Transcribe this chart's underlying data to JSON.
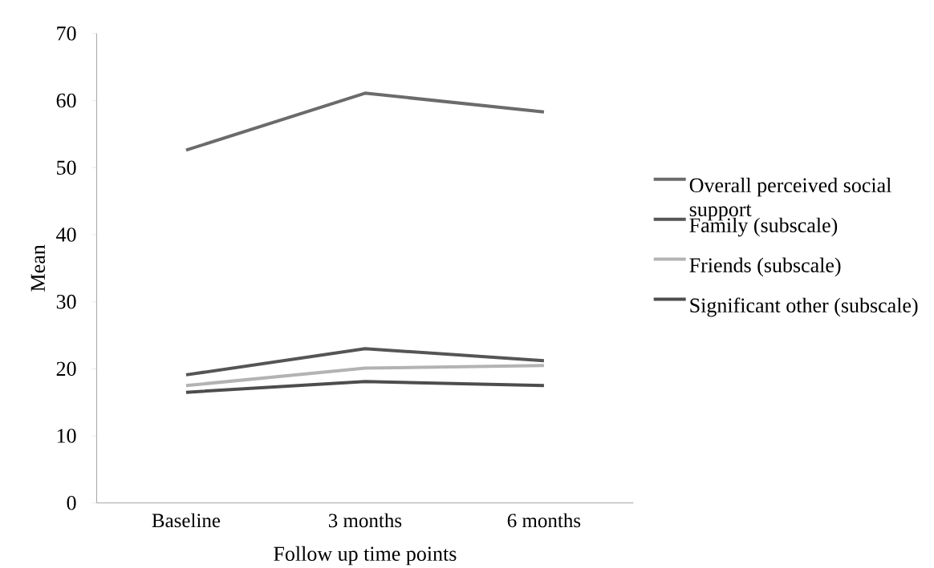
{
  "chart_data": {
    "type": "line",
    "xlabel": "Follow up time points",
    "ylabel": "Mean",
    "categories": [
      "Baseline",
      "3 months",
      "6 months"
    ],
    "series": [
      {
        "name": "Overall perceived social support",
        "color": "#6b6b6b",
        "values": [
          52.6,
          61.1,
          58.3
        ]
      },
      {
        "name": "Family (subscale)",
        "color": "#555555",
        "values": [
          19.1,
          23.0,
          21.2
        ]
      },
      {
        "name": "Friends (subscale)",
        "color": "#b3b3b3",
        "values": [
          17.5,
          20.1,
          20.5
        ]
      },
      {
        "name": "Significant other (subscale)",
        "color": "#4d4d4d",
        "values": [
          16.5,
          18.1,
          17.5
        ]
      }
    ],
    "ylim": [
      0,
      70
    ],
    "yticks": [
      0,
      10,
      20,
      30,
      40,
      50,
      60,
      70
    ],
    "legend": "right"
  }
}
